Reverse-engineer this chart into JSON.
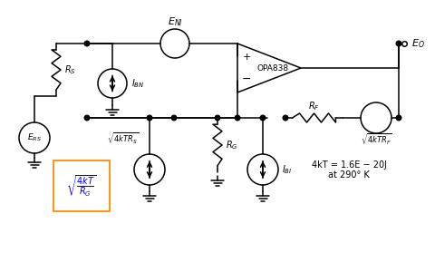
{
  "bg_color": "#ffffff",
  "line_color": "#000000",
  "orange_color": "#FF8C00",
  "blue_color": "#0000FF",
  "ann1": "4kT = 1.6E − 20J",
  "ann2": "at 290° K"
}
